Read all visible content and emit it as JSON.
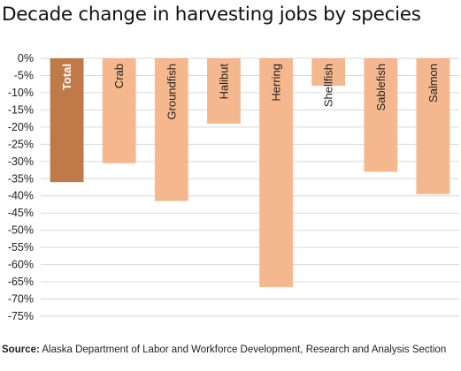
{
  "chart_data": {
    "type": "bar",
    "title": "Decade change in harvesting jobs by species",
    "categories": [
      "Total",
      "Crab",
      "Groundfish",
      "Halibut",
      "Herring",
      "Shellfish",
      "Sablefish",
      "Salmon"
    ],
    "values": [
      -36,
      -30.5,
      -41.5,
      -19,
      -66.5,
      -8,
      -33,
      -39.5
    ],
    "ylim": [
      -75,
      0
    ],
    "yticks": [
      "0%",
      "-5%",
      "-10%",
      "-15%",
      "-20%",
      "-25%",
      "-30%",
      "-35%",
      "-40%",
      "-45%",
      "-50%",
      "-55%",
      "-60%",
      "-65%",
      "-70%",
      "-75%"
    ],
    "grid": true,
    "xlabel": "",
    "ylabel": "",
    "highlight_category": "Total",
    "colors": {
      "highlight": "#c07a4a",
      "bar": "#f5b88e",
      "grid": "#d9d9d9",
      "text": "#222222"
    }
  },
  "source": {
    "label": "Source:",
    "text": "Alaska Department of Labor and Workforce Development, Research and Analysis Section"
  }
}
